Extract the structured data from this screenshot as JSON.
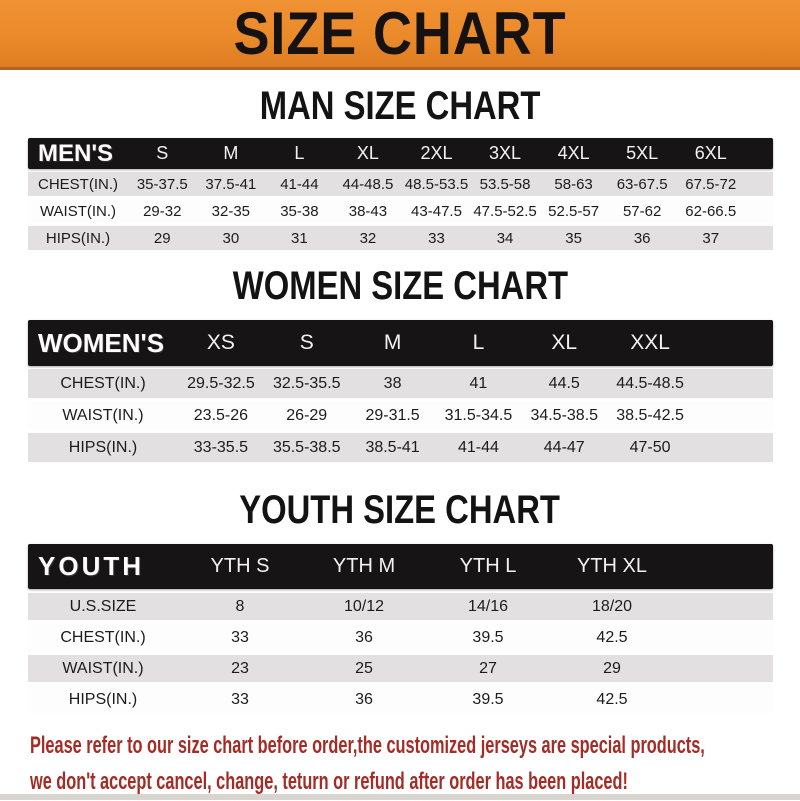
{
  "banner": {
    "title": "SIZE CHART"
  },
  "colors": {
    "banner_bg": "#EA8A2B",
    "banner_bg_light": "#F09133",
    "banner_bg_dark": "#DF7D22",
    "banner_edge": "#B26428",
    "header_bar": "#171415",
    "row_shade": "#E2E0E1",
    "footer_text": "#A32C26"
  },
  "sections": [
    {
      "heading": "MAN SIZE CHART",
      "table": {
        "label": "MEN'S",
        "columns": [
          "S",
          "M",
          "L",
          "XL",
          "2XL",
          "3XL",
          "4XL",
          "5XL",
          "6XL"
        ],
        "rows": [
          {
            "label": "CHEST(IN.)",
            "values": [
              "35-37.5",
              "37.5-41",
              "41-44",
              "44-48.5",
              "48.5-53.5",
              "53.5-58",
              "58-63",
              "63-67.5",
              "67.5-72"
            ]
          },
          {
            "label": "WAIST(IN.)",
            "values": [
              "29-32",
              "32-35",
              "35-38",
              "38-43",
              "43-47.5",
              "47.5-52.5",
              "52.5-57",
              "57-62",
              "62-66.5"
            ]
          },
          {
            "label": "HIPS(IN.)",
            "values": [
              "29",
              "30",
              "31",
              "32",
              "33",
              "34",
              "35",
              "36",
              "37"
            ]
          }
        ]
      }
    },
    {
      "heading": "WOMEN SIZE CHART",
      "table": {
        "label": "WOMEN'S",
        "columns": [
          "XS",
          "S",
          "M",
          "L",
          "XL",
          "XXL"
        ],
        "rows": [
          {
            "label": "CHEST(IN.)",
            "values": [
              "29.5-32.5",
              "32.5-35.5",
              "38",
              "41",
              "44.5",
              "44.5-48.5"
            ]
          },
          {
            "label": "WAIST(IN.)",
            "values": [
              "23.5-26",
              "26-29",
              "29-31.5",
              "31.5-34.5",
              "34.5-38.5",
              "38.5-42.5"
            ]
          },
          {
            "label": "HIPS(IN.)",
            "values": [
              "33-35.5",
              "35.5-38.5",
              "38.5-41",
              "41-44",
              "44-47",
              "47-50"
            ]
          }
        ]
      }
    },
    {
      "heading": "YOUTH SIZE CHART",
      "table": {
        "label": "YOUTH",
        "columns": [
          "YTH S",
          "YTH M",
          "YTH L",
          "YTH XL"
        ],
        "rows": [
          {
            "label": "U.S.SIZE",
            "values": [
              "8",
              "10/12",
              "14/16",
              "18/20"
            ]
          },
          {
            "label": "CHEST(IN.)",
            "values": [
              "33",
              "36",
              "39.5",
              "42.5"
            ]
          },
          {
            "label": "WAIST(IN.)",
            "values": [
              "23",
              "25",
              "27",
              "29"
            ]
          },
          {
            "label": "HIPS(IN.)",
            "values": [
              "33",
              "36",
              "39.5",
              "42.5"
            ]
          }
        ]
      }
    }
  ],
  "footer": {
    "line1": "Please refer to our size chart before order,the customized jerseys are special products,",
    "line2": "we don't accept cancel, change, teturn or refund after order has been placed!"
  }
}
